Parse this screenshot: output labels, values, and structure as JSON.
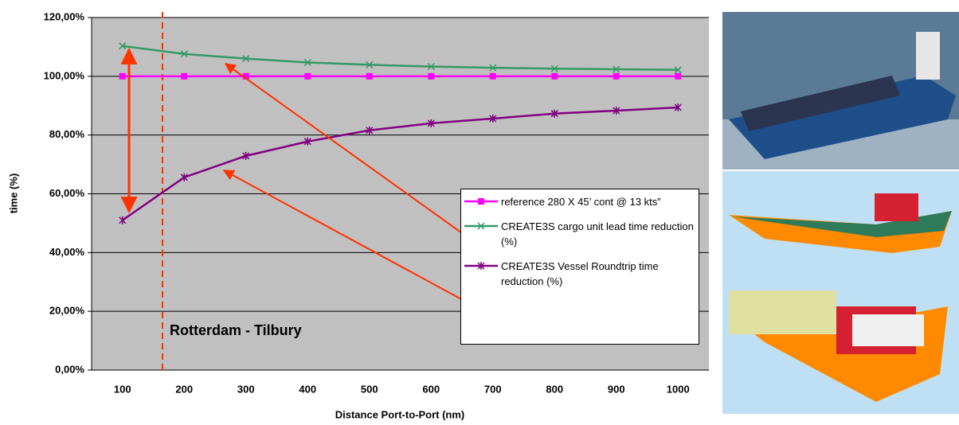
{
  "chart_data": {
    "type": "line",
    "xlabel": "Distance Port-to-Port (nm)",
    "ylabel": "time (%)",
    "annotation": "Rotterdam - Tilbury",
    "categories": [
      "100",
      "200",
      "300",
      "400",
      "500",
      "600",
      "700",
      "800",
      "900",
      "1000"
    ],
    "series": [
      {
        "name": "reference 280 X 45’ cont @ 13 kts”",
        "color": "#ff00ff",
        "marker": "square",
        "values": [
          100,
          100,
          100,
          100,
          100,
          100,
          100,
          100,
          100,
          100
        ]
      },
      {
        "name": "CREATE3S cargo unit lead time reduction (%)",
        "color": "#339966",
        "marker": "x",
        "values": [
          110.3,
          107.6,
          106.0,
          104.7,
          103.9,
          103.3,
          102.9,
          102.6,
          102.4,
          102.2
        ]
      },
      {
        "name": "CREATE3S Vessel Roundtrip time reduction (%)",
        "color": "#800080",
        "marker": "star",
        "values": [
          51.0,
          65.6,
          72.9,
          77.8,
          81.6,
          84.0,
          85.6,
          87.3,
          88.3,
          89.4
        ]
      }
    ],
    "ylim": [
      0,
      120
    ],
    "yticks": [
      {
        "value": 0,
        "label": "0,00%"
      },
      {
        "value": 20,
        "label": "20,00%"
      },
      {
        "value": 40,
        "label": "40,00%"
      },
      {
        "value": 60,
        "label": "60,00%"
      },
      {
        "value": 80,
        "label": "80,00%"
      },
      {
        "value": 100,
        "label": "100,00%"
      },
      {
        "value": 120,
        "label": "120,00%"
      }
    ],
    "grid": true
  }
}
